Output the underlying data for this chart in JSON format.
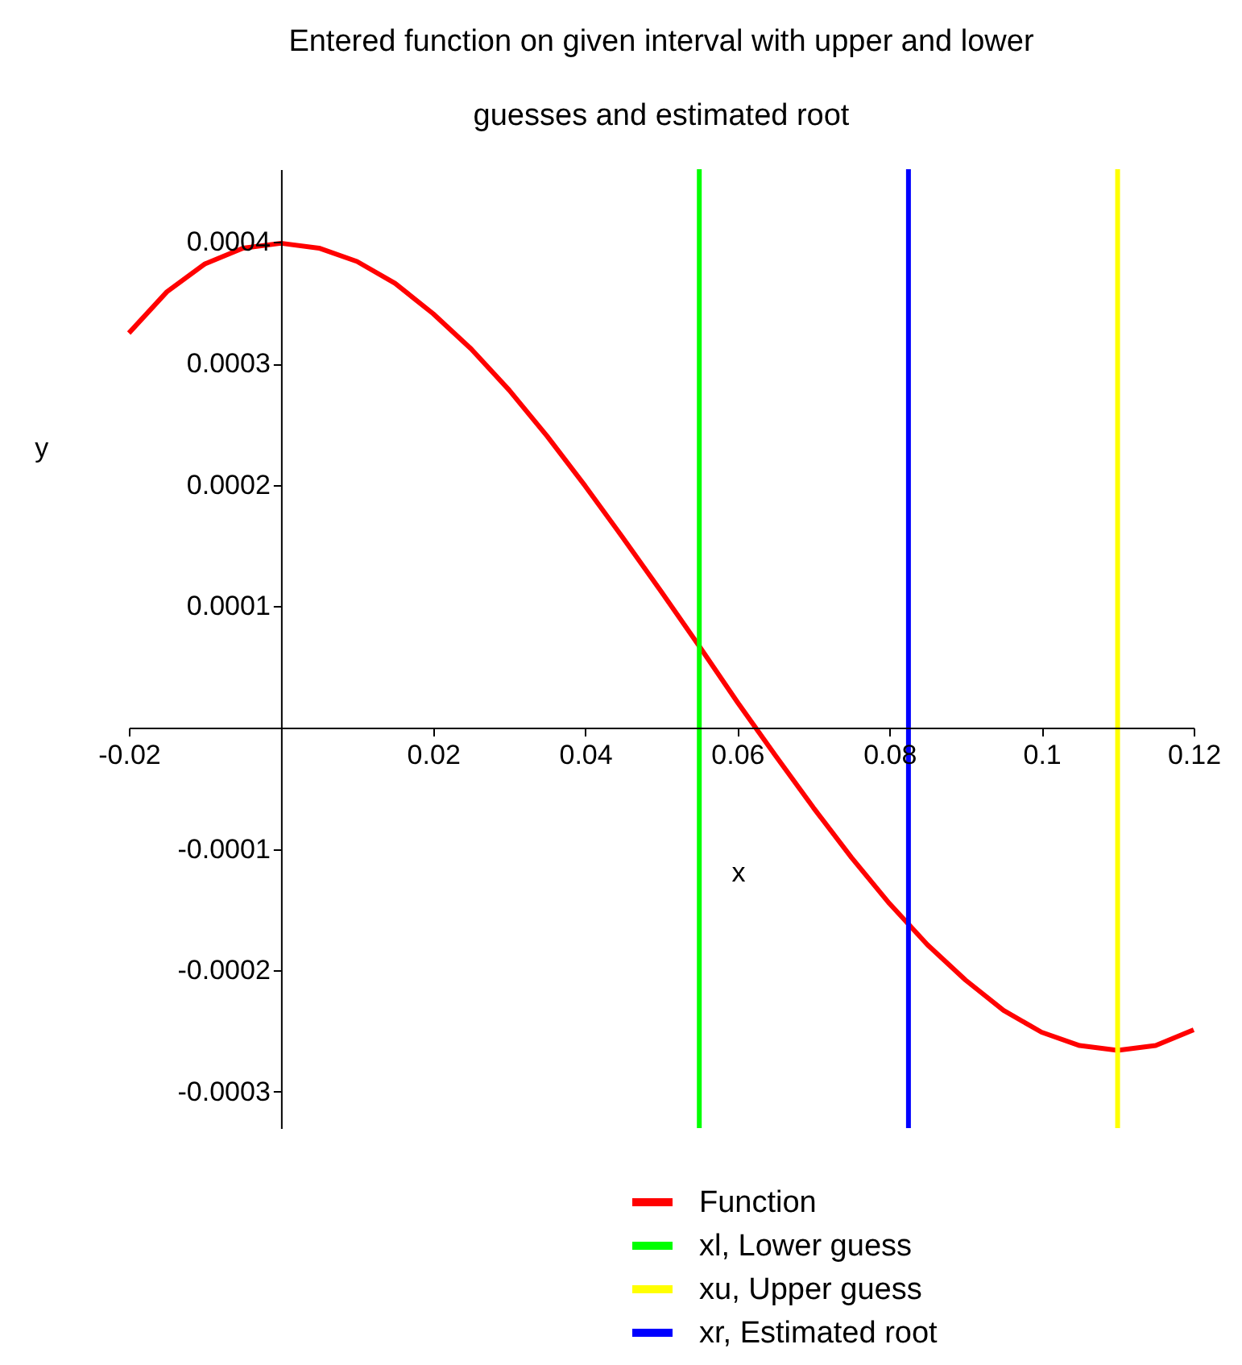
{
  "chart_data": {
    "type": "line",
    "title": "Entered function on given interval with upper and lower guesses and estimated root",
    "xlabel": "x",
    "ylabel": "y",
    "xlim": [
      -0.02,
      0.12
    ],
    "ylim": [
      -0.00033,
      0.00046
    ],
    "xticks": [
      -0.02,
      0.02,
      0.04,
      0.06,
      0.08,
      0.1,
      0.12
    ],
    "yticks": [
      -0.0003,
      -0.0002,
      -0.0001,
      0.0001,
      0.0002,
      0.0003,
      0.0004
    ],
    "grid": false,
    "legend": "bottom",
    "marker": "none",
    "line_style": "solid",
    "series": [
      {
        "name": "Function",
        "color": "#ff0000",
        "x": [
          -0.02,
          -0.015,
          -0.01,
          -0.005,
          0,
          0.005,
          0.01,
          0.015,
          0.02,
          0.025,
          0.03,
          0.035,
          0.04,
          0.045,
          0.05,
          0.055,
          0.06,
          0.065,
          0.07,
          0.075,
          0.08,
          0.085,
          0.09,
          0.095,
          0.1,
          0.105,
          0.11,
          0.115,
          0.12
        ],
        "values": [
          0.000325,
          0.000359,
          0.000382,
          0.000395,
          0.000399,
          0.000395,
          0.000384,
          0.000366,
          0.000341,
          0.000312,
          0.000278,
          0.00024,
          0.000199,
          0.000156,
          0.000112,
          6.7e-05,
          2.1e-05,
          -2.3e-05,
          -6.6e-05,
          -0.000107,
          -0.000145,
          -0.000179,
          -0.000208,
          -0.000233,
          -0.000251,
          -0.000262,
          -0.000266,
          -0.000262,
          -0.000249
        ]
      },
      {
        "name": "xl, Lower guess",
        "color": "#00ff00",
        "x": [
          0.055,
          0.055
        ],
        "values": [
          -0.00033,
          0.00046
        ]
      },
      {
        "name": "xu, Upper guess",
        "color": "#ffff00",
        "x": [
          0.11,
          0.11
        ],
        "values": [
          -0.00033,
          0.00046
        ]
      },
      {
        "name": "xr, Estimated root",
        "color": "#0000ff",
        "x": [
          0.0825,
          0.0825
        ],
        "values": [
          -0.00033,
          0.00046
        ]
      }
    ]
  }
}
